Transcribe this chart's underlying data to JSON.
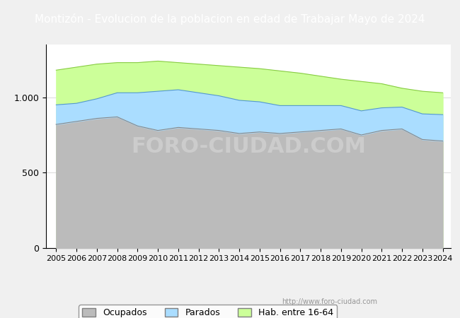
{
  "title": "Montizón - Evolucion de la poblacion en edad de Trabajar Mayo de 2024",
  "title_bg": "#4472c4",
  "title_color": "white",
  "ylabel_ticks": [
    0,
    500,
    "1.000"
  ],
  "yticks": [
    0,
    500,
    1000
  ],
  "ymax": 1350,
  "xmin": 2005,
  "xmax": 2024.4,
  "legend_labels": [
    "Ocupados",
    "Parados",
    "Hab. entre 16-64"
  ],
  "watermark": "http://www.foro-ciudad.com",
  "hab_color": "#ccff99",
  "hab_line_color": "#88cc44",
  "parados_color": "#aaddff",
  "parados_line_color": "#5599cc",
  "ocupados_color": "#bbbbbb",
  "ocupados_line_color": "#888888",
  "years": [
    2005,
    2006,
    2007,
    2008,
    2009,
    2010,
    2011,
    2012,
    2013,
    2014,
    2015,
    2016,
    2017,
    2018,
    2019,
    2020,
    2021,
    2022,
    2023,
    2024
  ],
  "hab_data": [
    1180,
    1200,
    1220,
    1230,
    1230,
    1240,
    1230,
    1220,
    1210,
    1200,
    1190,
    1175,
    1160,
    1140,
    1120,
    1105,
    1090,
    1060,
    1040,
    1030
  ],
  "ocupados_data": [
    820,
    840,
    860,
    870,
    810,
    780,
    800,
    790,
    780,
    760,
    770,
    760,
    770,
    780,
    790,
    750,
    780,
    790,
    720,
    710
  ],
  "parados_data": [
    130,
    120,
    130,
    160,
    220,
    260,
    250,
    240,
    230,
    220,
    200,
    185,
    175,
    165,
    155,
    160,
    150,
    145,
    170,
    175
  ],
  "background_color": "#f0f0f0",
  "plot_bg": "white"
}
